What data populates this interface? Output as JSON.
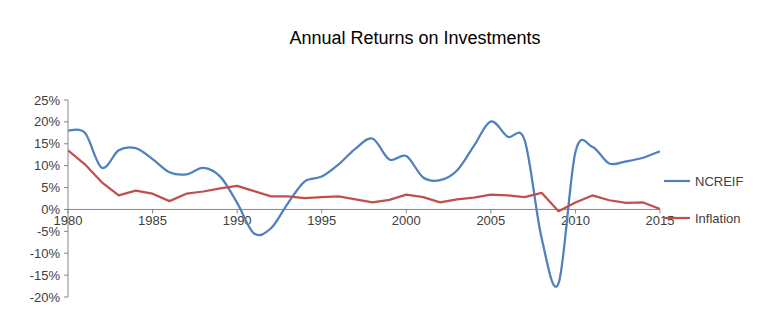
{
  "chart_data": {
    "type": "line",
    "title": "Annual Returns on Investments",
    "x": [
      1980,
      1981,
      1982,
      1983,
      1984,
      1985,
      1986,
      1987,
      1988,
      1989,
      1990,
      1991,
      1992,
      1993,
      1994,
      1995,
      1996,
      1997,
      1998,
      1999,
      2000,
      2001,
      2002,
      2003,
      2004,
      2005,
      2006,
      2007,
      2008,
      2009,
      2010,
      2011,
      2012,
      2013,
      2014,
      2015
    ],
    "series": [
      {
        "name": "NCREIF",
        "color": "#4f81bd",
        "line_style": "smooth",
        "values": [
          18,
          17.5,
          9.5,
          13.5,
          14,
          11.5,
          8.5,
          8,
          9.5,
          7.5,
          1.5,
          -5.5,
          -4.3,
          1.4,
          6.4,
          7.5,
          10.3,
          13.9,
          16.2,
          11.4,
          12.2,
          7.3,
          6.7,
          8.9,
          14.5,
          20.1,
          16.6,
          15.8,
          -6.5,
          -16.9,
          13.1,
          14.3,
          10.5,
          11,
          11.8,
          13.3
        ]
      },
      {
        "name": "Inflation",
        "color": "#c0504d",
        "line_style": "solid",
        "values": [
          13.5,
          10.3,
          6.2,
          3.2,
          4.3,
          3.6,
          1.9,
          3.6,
          4.1,
          4.8,
          5.4,
          4.2,
          3.0,
          3.0,
          2.6,
          2.8,
          3.0,
          2.3,
          1.6,
          2.2,
          3.4,
          2.8,
          1.6,
          2.3,
          2.7,
          3.4,
          3.2,
          2.8,
          3.8,
          -0.4,
          1.6,
          3.2,
          2.1,
          1.5,
          1.6,
          0.1
        ]
      }
    ],
    "xlim": [
      1980,
      2015
    ],
    "xticks": [
      1980,
      1985,
      1990,
      1995,
      2000,
      2005,
      2010,
      2015
    ],
    "ylim": [
      -20,
      25
    ],
    "yticks": [
      {
        "value": -20,
        "label": "-20%"
      },
      {
        "value": -15,
        "label": "-15%"
      },
      {
        "value": -10,
        "label": "-10%"
      },
      {
        "value": -5,
        "label": "-5%"
      },
      {
        "value": 0,
        "label": "0%"
      },
      {
        "value": 5,
        "label": "5%"
      },
      {
        "value": 10,
        "label": "10%"
      },
      {
        "value": 15,
        "label": "15%"
      },
      {
        "value": 20,
        "label": "20%"
      },
      {
        "value": 25,
        "label": "25%"
      }
    ],
    "grid": false,
    "legend": "right"
  }
}
